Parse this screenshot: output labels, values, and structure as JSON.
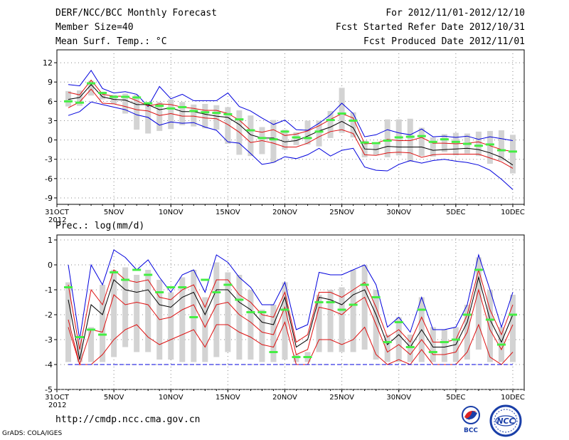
{
  "header": {
    "title": "DERF/NCC/BCC Monthly Forecast",
    "member_size": "Member Size=40",
    "variable": "Mean Surf. Temp.: °C",
    "period": "For 2012/11/01-2012/12/10",
    "refer_date": "Fcst Started Refer Date 2012/10/31",
    "produced_date": "Fcst Produced Date 2012/11/01"
  },
  "footer": {
    "url": "http://cmdp.ncc.cma.gov.cn",
    "credit": "GrADS: COLA/IGES",
    "logo_bcc": "BCC",
    "logo_ncc": "NCC"
  },
  "colors": {
    "box": "#d3d3d3",
    "median": "#44ee44",
    "mean": "#000000",
    "spread": "#dd1111",
    "envelope": "#0000dd",
    "grid": "#888888"
  },
  "chart_data": [
    {
      "type": "line",
      "title": "Mean Surf. Temp.: °C",
      "x_start_label": "31OCT\n2012",
      "xtick_labels": [
        "31OCT",
        "5NOV",
        "10NOV",
        "15NOV",
        "20NOV",
        "25NOV",
        "30NOV",
        "5DEC",
        "10DEC"
      ],
      "xtick_days": [
        0,
        5,
        10,
        15,
        20,
        25,
        30,
        35,
        40
      ],
      "year_label": "2012",
      "ylim": [
        -10,
        14
      ],
      "yticks": [
        -9,
        -6,
        -3,
        0,
        3,
        6,
        9,
        12
      ],
      "x_days": [
        1,
        2,
        3,
        4,
        5,
        6,
        7,
        8,
        9,
        10,
        11,
        12,
        13,
        14,
        15,
        16,
        17,
        18,
        19,
        20,
        21,
        22,
        23,
        24,
        25,
        26,
        27,
        28,
        29,
        30,
        31,
        32,
        33,
        34,
        35,
        36,
        37,
        38,
        39,
        40
      ],
      "series": [
        {
          "name": "max",
          "values": [
            8.6,
            8.4,
            10.8,
            8.0,
            7.3,
            7.5,
            7.1,
            5.2,
            8.3,
            6.4,
            7.1,
            6.1,
            6.1,
            6.1,
            7.3,
            5.2,
            4.5,
            3.4,
            2.4,
            3.1,
            1.6,
            1.5,
            2.6,
            3.9,
            5.7,
            4.1,
            0.5,
            0.8,
            1.6,
            1.1,
            0.8,
            1.7,
            0.5,
            0.6,
            0.4,
            0.6,
            0.1,
            0.5,
            0.2,
            -0.1
          ]
        },
        {
          "name": "upper",
          "values": [
            7.4,
            7.0,
            9.3,
            7.1,
            6.8,
            6.8,
            6.1,
            5.3,
            5.6,
            5.5,
            5.1,
            4.9,
            4.6,
            4.6,
            4.1,
            3.1,
            1.5,
            1.2,
            1.6,
            0.7,
            0.9,
            1.4,
            2.2,
            3.2,
            4.1,
            3.4,
            -0.6,
            -0.5,
            0.1,
            -0.1,
            -0.1,
            0.4,
            -0.5,
            -0.5,
            -0.6,
            -0.5,
            -0.3,
            -0.9,
            -1.5,
            -1.8
          ]
        },
        {
          "name": "mean",
          "values": [
            6.3,
            6.6,
            8.6,
            6.7,
            6.3,
            6.2,
            5.5,
            5.5,
            4.7,
            5.0,
            4.4,
            4.4,
            4.0,
            3.7,
            3.5,
            2.4,
            0.8,
            0.3,
            0.3,
            -0.3,
            -0.1,
            0.6,
            1.4,
            2.0,
            2.9,
            1.9,
            -1.4,
            -1.5,
            -1.0,
            -1.1,
            -1.1,
            -1.1,
            -1.6,
            -1.5,
            -1.4,
            -1.3,
            -1.5,
            -2.0,
            -2.7,
            -3.9
          ]
        },
        {
          "name": "lower",
          "values": [
            5.0,
            5.9,
            7.9,
            5.7,
            5.6,
            5.2,
            4.7,
            4.5,
            3.8,
            4.1,
            3.7,
            3.7,
            3.4,
            3.3,
            2.4,
            1.2,
            -0.4,
            -0.1,
            -0.5,
            -1.1,
            -1.1,
            -0.5,
            0.5,
            1.3,
            1.6,
            1.0,
            -2.3,
            -2.4,
            -2.0,
            -1.9,
            -2.0,
            -2.7,
            -2.3,
            -2.2,
            -2.2,
            -2.2,
            -2.2,
            -2.8,
            -3.4,
            -4.4
          ]
        },
        {
          "name": "min",
          "values": [
            3.8,
            4.4,
            5.9,
            5.5,
            5.1,
            4.7,
            3.9,
            3.5,
            2.3,
            2.8,
            2.6,
            2.7,
            2.0,
            1.5,
            -0.3,
            -0.5,
            -2.1,
            -3.8,
            -3.5,
            -2.6,
            -2.9,
            -2.3,
            -1.3,
            -2.5,
            -1.6,
            -1.3,
            -4.2,
            -4.7,
            -4.8,
            -3.8,
            -3.2,
            -3.6,
            -3.2,
            -3.0,
            -3.3,
            -3.5,
            -3.9,
            -4.7,
            -6.1,
            -7.7
          ]
        }
      ],
      "box_tops": [
        7.6,
        7.7,
        9.2,
        7.5,
        7.0,
        7.2,
        7.0,
        5.8,
        5.9,
        6.3,
        5.9,
        5.5,
        5.6,
        5.4,
        5.1,
        4.6,
        3.8,
        2.0,
        3.1,
        1.6,
        1.2,
        3.0,
        3.0,
        4.5,
        8.1,
        4.3,
        -0.1,
        -0.7,
        3.2,
        3.2,
        3.3,
        1.9,
        0.4,
        0.9,
        1.1,
        1.0,
        1.3,
        1.4,
        1.5,
        0.8
      ],
      "box_bottoms": [
        5.2,
        5.3,
        6.9,
        6.3,
        5.6,
        4.1,
        1.6,
        1.0,
        1.4,
        1.7,
        2.3,
        2.1,
        1.8,
        1.6,
        -0.6,
        -2.3,
        -2.5,
        -2.2,
        -3.5,
        -1.5,
        -0.8,
        -0.7,
        -1.0,
        0.3,
        1.1,
        0.4,
        -2.7,
        -2.3,
        -2.7,
        -2.4,
        -3.4,
        -2.5,
        -2.6,
        -1.9,
        -2.4,
        -2.1,
        -2.5,
        -3.7,
        -3.2,
        -5.2
      ],
      "medians": [
        6.0,
        5.8,
        8.8,
        7.3,
        6.7,
        6.7,
        6.6,
        5.7,
        5.3,
        4.9,
        5.1,
        4.5,
        4.3,
        4.2,
        4.0,
        3.2,
        1.5,
        0.3,
        0.1,
        1.3,
        0.4,
        0.3,
        1.3,
        3.1,
        4.1,
        3.0,
        -0.4,
        -0.5,
        -0.1,
        0.4,
        0.5,
        0.6,
        -0.3,
        0.1,
        -0.3,
        -0.6,
        -0.9,
        -0.7,
        -1.6,
        -1.8
      ]
    },
    {
      "type": "line",
      "title": "Prec.: log(mm/d)",
      "x_start_label": "31OCT\n2012",
      "xtick_labels": [
        "31OCT",
        "5NOV",
        "10NOV",
        "15NOV",
        "20NOV",
        "25NOV",
        "30NOV",
        "5DEC",
        "10DEC"
      ],
      "xtick_days": [
        0,
        5,
        10,
        15,
        20,
        25,
        30,
        35,
        40
      ],
      "year_label": "2012",
      "ylim": [
        -5,
        1.2
      ],
      "yticks": [
        -5,
        -4,
        -3,
        -2,
        -1,
        0,
        1
      ],
      "x_days": [
        1,
        2,
        3,
        4,
        5,
        6,
        7,
        8,
        9,
        10,
        11,
        12,
        13,
        14,
        15,
        16,
        17,
        18,
        19,
        20,
        21,
        22,
        23,
        24,
        25,
        26,
        27,
        28,
        29,
        30,
        31,
        32,
        33,
        34,
        35,
        36,
        37,
        38,
        39,
        40
      ],
      "series": [
        {
          "name": "max",
          "values": [
            0.0,
            -3.0,
            0.0,
            -0.8,
            0.6,
            0.3,
            -0.2,
            0.2,
            -0.5,
            -1.1,
            -0.4,
            -0.2,
            -1.1,
            0.4,
            0.1,
            -0.5,
            -0.9,
            -1.6,
            -1.6,
            -0.7,
            -2.6,
            -2.4,
            -0.3,
            -0.4,
            -0.4,
            -0.2,
            0.0,
            -0.8,
            -2.5,
            -2.1,
            -2.7,
            -1.3,
            -2.6,
            -2.6,
            -2.5,
            -1.6,
            0.4,
            -1.0,
            -2.5,
            -1.1
          ]
        },
        {
          "name": "upper",
          "values": [
            -0.8,
            -3.4,
            -1.0,
            -1.6,
            -0.2,
            -0.6,
            -0.7,
            -0.6,
            -1.3,
            -1.4,
            -1.0,
            -0.8,
            -1.7,
            -0.6,
            -0.6,
            -1.2,
            -1.5,
            -2.0,
            -2.1,
            -1.1,
            -3.1,
            -2.8,
            -1.1,
            -1.1,
            -1.3,
            -1.0,
            -0.7,
            -1.7,
            -2.9,
            -2.6,
            -3.1,
            -2.1,
            -3.1,
            -3.1,
            -3.0,
            -2.0,
            -0.2,
            -1.8,
            -2.8,
            -1.6
          ]
        },
        {
          "name": "mean",
          "values": [
            -1.4,
            -3.8,
            -1.6,
            -2.0,
            -0.6,
            -1.0,
            -1.1,
            -1.0,
            -1.6,
            -1.7,
            -1.3,
            -1.1,
            -2.0,
            -1.0,
            -1.0,
            -1.5,
            -1.8,
            -2.3,
            -2.4,
            -1.3,
            -3.3,
            -3.0,
            -1.3,
            -1.4,
            -1.6,
            -1.2,
            -1.0,
            -2.0,
            -3.2,
            -2.8,
            -3.3,
            -2.6,
            -3.3,
            -3.3,
            -3.2,
            -2.3,
            -0.5,
            -2.2,
            -3.1,
            -2.0
          ]
        },
        {
          "name": "lower",
          "values": [
            -2.2,
            -4.0,
            -2.6,
            -2.7,
            -1.2,
            -1.6,
            -1.5,
            -1.6,
            -2.2,
            -2.1,
            -1.8,
            -1.6,
            -2.5,
            -1.6,
            -1.5,
            -2.0,
            -2.3,
            -2.7,
            -2.8,
            -1.7,
            -3.6,
            -3.4,
            -1.7,
            -1.8,
            -2.0,
            -1.6,
            -1.3,
            -2.4,
            -3.5,
            -3.2,
            -3.6,
            -3.0,
            -3.6,
            -3.6,
            -3.5,
            -2.7,
            -1.0,
            -2.6,
            -3.4,
            -2.4
          ]
        },
        {
          "name": "lower2",
          "values": [
            -2.5,
            -4.0,
            -4.0,
            -3.6,
            -3.0,
            -2.6,
            -2.4,
            -2.9,
            -3.2,
            -3.0,
            -2.8,
            -2.6,
            -3.3,
            -2.4,
            -2.4,
            -2.7,
            -2.9,
            -3.2,
            -3.3,
            -2.3,
            -4.0,
            -4.0,
            -3.0,
            -3.0,
            -3.2,
            -3.0,
            -2.5,
            -3.6,
            -4.0,
            -3.8,
            -4.0,
            -3.4,
            -4.0,
            -4.0,
            -4.0,
            -3.5,
            -2.4,
            -3.7,
            -4.0,
            -3.5
          ]
        },
        {
          "name": "min",
          "values": [
            -4.0,
            -4.0,
            -4.0,
            -4.0,
            -4.0,
            -4.0,
            -4.0,
            -4.0,
            -4.0,
            -4.0,
            -4.0,
            -4.0,
            -4.0,
            -4.0,
            -4.0,
            -4.0,
            -4.0,
            -4.0,
            -4.0,
            -4.0,
            -4.0,
            -4.0,
            -4.0,
            -4.0,
            -4.0,
            -4.0,
            -4.0,
            -4.0,
            -4.0,
            -4.0,
            -4.0,
            -4.0,
            -4.0,
            -4.0,
            -4.0,
            -4.0,
            -4.0,
            -4.0,
            -4.0,
            -4.0
          ]
        }
      ],
      "box_tops": [
        -0.7,
        -3.0,
        -2.5,
        -0.8,
        -0.2,
        -0.1,
        -0.4,
        -0.2,
        -0.6,
        -1.1,
        -0.5,
        -0.2,
        -1.3,
        0.1,
        -0.3,
        -0.4,
        -1.0,
        -1.8,
        -1.6,
        -0.7,
        -3.6,
        -3.5,
        -1.2,
        -1.0,
        -0.9,
        -0.2,
        0.0,
        -1.0,
        -2.8,
        -2.1,
        -2.8,
        -1.3,
        -2.5,
        -2.6,
        -2.5,
        -1.6,
        0.3,
        -1.0,
        -2.5,
        -1.2
      ],
      "box_bottoms": [
        -3.9,
        -3.9,
        -3.9,
        -3.9,
        -3.7,
        -3.3,
        -3.5,
        -3.5,
        -3.8,
        -3.8,
        -3.9,
        -3.9,
        -3.9,
        -3.7,
        -3.5,
        -3.8,
        -3.8,
        -3.9,
        -3.9,
        -3.8,
        -3.9,
        -3.9,
        -3.5,
        -3.5,
        -3.5,
        -3.5,
        -3.4,
        -3.8,
        -3.9,
        -3.9,
        -3.9,
        -3.9,
        -3.9,
        -3.9,
        -3.9,
        -3.8,
        -3.4,
        -3.9,
        -3.9,
        -3.9
      ],
      "medians": [
        -0.9,
        -2.9,
        -2.6,
        -2.8,
        -0.3,
        -0.6,
        -0.2,
        -0.4,
        -1.1,
        -0.9,
        -0.9,
        -2.1,
        -0.6,
        -1.1,
        -0.8,
        -1.4,
        -1.9,
        -1.9,
        -3.5,
        -1.8,
        -3.7,
        -3.7,
        -1.5,
        -1.5,
        -1.8,
        -1.6,
        -0.8,
        -1.3,
        -3.1,
        -2.3,
        -3.3,
        -1.8,
        -3.5,
        -3.1,
        -3.0,
        -2.0,
        -0.2,
        -2.2,
        -3.2,
        -2.0
      ]
    }
  ]
}
